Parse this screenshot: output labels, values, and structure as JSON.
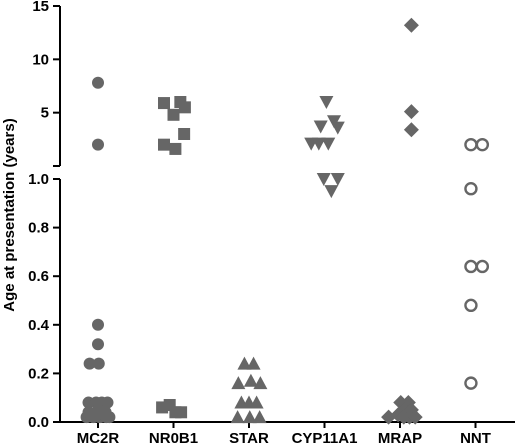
{
  "chart_data": {
    "type": "scatter",
    "title": "",
    "xlabel": "",
    "ylabel": "Age at presentation (years)",
    "categories": [
      "MC2R",
      "NR0B1",
      "STAR",
      "CYP11A1",
      "MRAP",
      "NNT"
    ],
    "y_axis": {
      "split_axis": true,
      "lower_segment": {
        "range": [
          0,
          1.0
        ],
        "ticks": [
          0.0,
          0.2,
          0.4,
          0.6,
          0.8,
          1.0
        ],
        "tick_labels": [
          "0.0",
          "0.2",
          "0.4",
          "0.6",
          "0.8",
          "1.0"
        ]
      },
      "upper_segment": {
        "range": [
          1.0,
          15
        ],
        "ticks": [
          5,
          10,
          15
        ],
        "tick_labels": [
          "5",
          "10",
          "15"
        ]
      }
    },
    "grid": false,
    "legend": "none",
    "marker_color": "#666666",
    "series": [
      {
        "category": "MC2R",
        "marker": "circle-filled",
        "points": [
          {
            "x": -0.25,
            "y": 0.08
          },
          {
            "x": -0.05,
            "y": 0.08
          },
          {
            "x": 0.1,
            "y": 0.08
          },
          {
            "x": 0.25,
            "y": 0.08
          },
          {
            "x": -0.3,
            "y": 0.02
          },
          {
            "x": -0.2,
            "y": 0.03
          },
          {
            "x": -0.12,
            "y": 0.02
          },
          {
            "x": -0.05,
            "y": 0.03
          },
          {
            "x": 0.05,
            "y": 0.02
          },
          {
            "x": 0.15,
            "y": 0.03
          },
          {
            "x": 0.22,
            "y": 0.02
          },
          {
            "x": 0.3,
            "y": 0.02
          },
          {
            "x": -0.25,
            "y": 0.04
          },
          {
            "x": 0.0,
            "y": 0.05
          },
          {
            "x": 0.2,
            "y": 0.04
          },
          {
            "x": -0.22,
            "y": 0.24
          },
          {
            "x": 0.02,
            "y": 0.24
          },
          {
            "x": 0.0,
            "y": 0.32
          },
          {
            "x": 0.0,
            "y": 0.4
          },
          {
            "x": 0.0,
            "y": 2.0
          },
          {
            "x": 0.0,
            "y": 7.8
          }
        ]
      },
      {
        "category": "NR0B1",
        "marker": "square-filled",
        "points": [
          {
            "x": -0.25,
            "y": 5.9
          },
          {
            "x": 0.18,
            "y": 6.0
          },
          {
            "x": 0.3,
            "y": 5.5
          },
          {
            "x": 0.0,
            "y": 4.8
          },
          {
            "x": -0.25,
            "y": 2.0
          },
          {
            "x": 0.28,
            "y": 3.0
          },
          {
            "x": 0.05,
            "y": 1.6
          },
          {
            "x": -0.3,
            "y": 0.06
          },
          {
            "x": -0.1,
            "y": 0.07
          },
          {
            "x": 0.05,
            "y": 0.04
          },
          {
            "x": 0.2,
            "y": 0.04
          }
        ]
      },
      {
        "category": "STAR",
        "marker": "triangle-up-filled",
        "points": [
          {
            "x": -0.12,
            "y": 0.24
          },
          {
            "x": 0.12,
            "y": 0.24
          },
          {
            "x": -0.28,
            "y": 0.16
          },
          {
            "x": 0.05,
            "y": 0.17
          },
          {
            "x": 0.3,
            "y": 0.16
          },
          {
            "x": -0.2,
            "y": 0.08
          },
          {
            "x": 0.0,
            "y": 0.08
          },
          {
            "x": 0.2,
            "y": 0.08
          },
          {
            "x": -0.3,
            "y": 0.02
          },
          {
            "x": 0.02,
            "y": 0.02
          },
          {
            "x": 0.28,
            "y": 0.02
          }
        ]
      },
      {
        "category": "CYP11A1",
        "marker": "triangle-down-filled",
        "points": [
          {
            "x": 0.05,
            "y": 6.0
          },
          {
            "x": 0.25,
            "y": 4.2
          },
          {
            "x": -0.1,
            "y": 3.7
          },
          {
            "x": 0.35,
            "y": 3.6
          },
          {
            "x": -0.35,
            "y": 2.1
          },
          {
            "x": -0.15,
            "y": 2.1
          },
          {
            "x": 0.1,
            "y": 2.1
          },
          {
            "x": -0.02,
            "y": 1.0
          },
          {
            "x": 0.18,
            "y": 0.95
          },
          {
            "x": 0.35,
            "y": 1.0
          }
        ]
      },
      {
        "category": "MRAP",
        "marker": "diamond-filled",
        "points": [
          {
            "x": 0.3,
            "y": 13.2
          },
          {
            "x": 0.3,
            "y": 5.1
          },
          {
            "x": 0.3,
            "y": 3.4
          },
          {
            "x": 0.02,
            "y": 0.08
          },
          {
            "x": 0.22,
            "y": 0.08
          },
          {
            "x": 0.12,
            "y": 0.05
          },
          {
            "x": 0.3,
            "y": 0.05
          },
          {
            "x": -0.3,
            "y": 0.02
          },
          {
            "x": -0.05,
            "y": 0.03
          },
          {
            "x": 0.1,
            "y": 0.02
          },
          {
            "x": 0.25,
            "y": 0.02
          },
          {
            "x": 0.4,
            "y": 0.02
          }
        ]
      },
      {
        "category": "NNT",
        "marker": "circle-open",
        "points": [
          {
            "x": -0.12,
            "y": 2.0
          },
          {
            "x": 0.18,
            "y": 2.0
          },
          {
            "x": -0.12,
            "y": 0.96
          },
          {
            "x": -0.12,
            "y": 0.64
          },
          {
            "x": 0.18,
            "y": 0.64
          },
          {
            "x": -0.12,
            "y": 0.48
          },
          {
            "x": -0.12,
            "y": 0.16
          }
        ]
      }
    ]
  }
}
